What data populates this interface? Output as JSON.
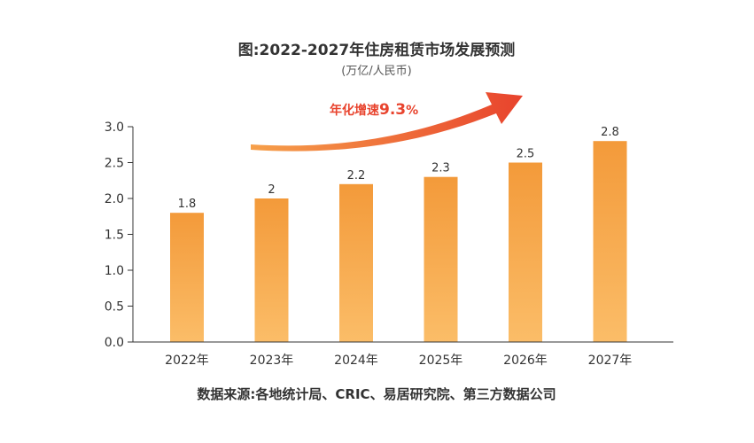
{
  "chart_data": {
    "type": "bar",
    "title": "图:2022-2027年住房租赁市场发展预测",
    "subtitle": "(万亿/人民币)",
    "categories": [
      "2022年",
      "2023年",
      "2024年",
      "2025年",
      "2026年",
      "2027年"
    ],
    "values": [
      1.8,
      2,
      2.2,
      2.3,
      2.5,
      2.8
    ],
    "value_labels": [
      "1.8",
      "2",
      "2.2",
      "2.3",
      "2.5",
      "2.8"
    ],
    "ylim": [
      0,
      3.0
    ],
    "yticks": [
      "0.0",
      "0.5",
      "1.0",
      "1.5",
      "2.0",
      "2.5",
      "3.0"
    ],
    "ytick_values": [
      0,
      0.5,
      1.0,
      1.5,
      2.0,
      2.5,
      3.0
    ],
    "grid": false,
    "annotation": {
      "label": "年化增速",
      "value": "9.3",
      "unit": "%"
    },
    "source": "数据来源:各地统计局、CRIC、易居研究院、第三方数据公司",
    "colors": {
      "bar_top": "#f39a3a",
      "bar_bottom": "#fbbd68",
      "arrow_start": "#f6a04a",
      "arrow_end": "#e8432d",
      "axis": "#333333"
    }
  }
}
